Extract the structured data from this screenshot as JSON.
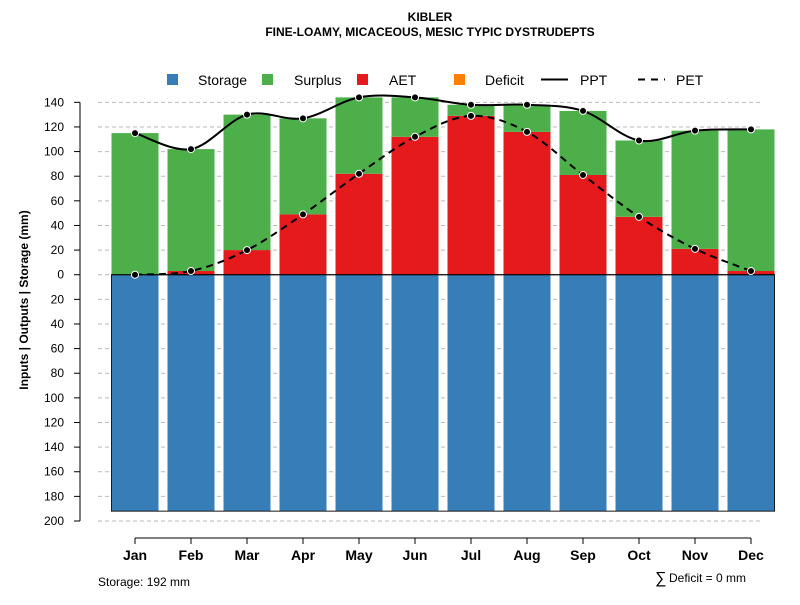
{
  "chart_data": {
    "type": "bar",
    "title": "KIBLER",
    "subtitle": "FINE-LOAMY, MICACEOUS, MESIC TYPIC DYSTRUDEPTS",
    "ylabel": "Inputs | Outputs | Storage    (mm)",
    "ylim": [
      -200,
      150
    ],
    "y_ticks_positive": [
      0,
      20,
      40,
      60,
      80,
      100,
      120,
      140
    ],
    "y_ticks_negative": [
      20,
      40,
      60,
      80,
      100,
      120,
      140,
      160,
      180,
      200
    ],
    "categories": [
      "Jan",
      "Feb",
      "Mar",
      "Apr",
      "May",
      "Jun",
      "Jul",
      "Aug",
      "Sep",
      "Oct",
      "Nov",
      "Dec"
    ],
    "grid": true,
    "legend_position": "top",
    "legend": [
      "Storage",
      "Surplus",
      "AET",
      "Deficit",
      "PPT",
      "PET"
    ],
    "colors": {
      "storage": "#377EB8",
      "surplus": "#4DAF4A",
      "aet": "#E41A1C",
      "deficit": "#FF7F00",
      "line": "#000000",
      "grid": "#bbbbbb"
    },
    "series": [
      {
        "name": "Storage",
        "kind": "bar-below",
        "values": [
          192,
          192,
          192,
          192,
          192,
          192,
          192,
          192,
          192,
          192,
          192,
          192
        ]
      },
      {
        "name": "AET",
        "kind": "bar",
        "values": [
          0,
          3,
          20,
          49,
          82,
          112,
          129,
          116,
          81,
          47,
          21,
          3
        ]
      },
      {
        "name": "Surplus",
        "kind": "bar-stack",
        "values": [
          115,
          99,
          110,
          78,
          62,
          32,
          9,
          22,
          52,
          62,
          96,
          115
        ]
      },
      {
        "name": "Deficit",
        "kind": "bar-stack",
        "values": [
          0,
          0,
          0,
          0,
          0,
          0,
          0,
          0,
          0,
          0,
          0,
          0
        ]
      },
      {
        "name": "PPT",
        "kind": "line",
        "style": "solid",
        "values": [
          115,
          102,
          130,
          127,
          144,
          144,
          138,
          138,
          133,
          109,
          117,
          118
        ]
      },
      {
        "name": "PET",
        "kind": "line",
        "style": "dashed",
        "values": [
          0,
          3,
          20,
          49,
          82,
          112,
          129,
          116,
          81,
          47,
          21,
          3
        ]
      }
    ],
    "annotations": {
      "storage": "Storage: 192 mm",
      "deficit_symbol": "∑",
      "deficit": "Deficit = 0 mm"
    }
  }
}
